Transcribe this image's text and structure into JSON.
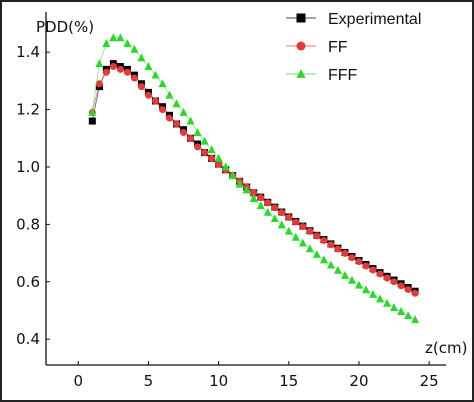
{
  "chart_data": {
    "type": "scatter",
    "title": "",
    "xlabel": "z(cm)",
    "ylabel": "PDD(%)",
    "xlim": [
      -2.3,
      26.2
    ],
    "ylim": [
      0.31,
      1.54
    ],
    "xticks": [
      0,
      5,
      10,
      15,
      20,
      25
    ],
    "yticks": [
      0.4,
      0.6,
      0.8,
      1.0,
      1.2,
      1.4
    ],
    "xtick_labels": [
      "0",
      "5",
      "10",
      "15",
      "20",
      "25"
    ],
    "ytick_labels": [
      "0.4",
      "0.6",
      "0.8",
      "1.0",
      "1.2",
      "1.4"
    ],
    "grid": false,
    "legend_position": "top-right",
    "series": [
      {
        "name": "Experimental",
        "color": "#000000",
        "marker": "square",
        "x": [
          1.0,
          1.5,
          2.0,
          2.5,
          3.0,
          3.5,
          4.0,
          4.5,
          5.0,
          5.5,
          6.0,
          6.5,
          7.0,
          7.5,
          8.0,
          8.5,
          9.0,
          9.5,
          10.0,
          10.5,
          11.0,
          11.5,
          12.0,
          12.5,
          13.0,
          13.5,
          14.0,
          14.5,
          15.0,
          15.5,
          16.0,
          16.5,
          17.0,
          17.5,
          18.0,
          18.5,
          19.0,
          19.5,
          20.0,
          20.5,
          21.0,
          21.5,
          22.0,
          22.5,
          23.0,
          23.5,
          24.0
        ],
        "y": [
          1.16,
          1.28,
          1.34,
          1.36,
          1.35,
          1.34,
          1.32,
          1.29,
          1.26,
          1.23,
          1.21,
          1.18,
          1.15,
          1.13,
          1.1,
          1.08,
          1.05,
          1.03,
          1.01,
          0.99,
          0.97,
          0.95,
          0.93,
          0.91,
          0.895,
          0.877,
          0.86,
          0.843,
          0.826,
          0.81,
          0.794,
          0.778,
          0.762,
          0.747,
          0.732,
          0.717,
          0.702,
          0.688,
          0.674,
          0.66,
          0.646,
          0.632,
          0.619,
          0.606,
          0.593,
          0.58,
          0.567
        ]
      },
      {
        "name": "FF",
        "color": "#e23b3b",
        "marker": "circle",
        "x": [
          1.0,
          1.5,
          2.0,
          2.5,
          3.0,
          3.5,
          4.0,
          4.5,
          5.0,
          5.5,
          6.0,
          6.5,
          7.0,
          7.5,
          8.0,
          8.5,
          9.0,
          9.5,
          10.0,
          10.5,
          11.0,
          11.5,
          12.0,
          12.5,
          13.0,
          13.5,
          14.0,
          14.5,
          15.0,
          15.5,
          16.0,
          16.5,
          17.0,
          17.5,
          18.0,
          18.5,
          19.0,
          19.5,
          20.0,
          20.5,
          21.0,
          21.5,
          22.0,
          22.5,
          23.0,
          23.5,
          24.0
        ],
        "y": [
          1.19,
          1.29,
          1.33,
          1.35,
          1.34,
          1.33,
          1.31,
          1.28,
          1.25,
          1.23,
          1.2,
          1.17,
          1.15,
          1.12,
          1.1,
          1.07,
          1.05,
          1.03,
          1.01,
          0.99,
          0.97,
          0.95,
          0.93,
          0.91,
          0.893,
          0.875,
          0.858,
          0.841,
          0.824,
          0.808,
          0.792,
          0.776,
          0.76,
          0.744,
          0.729,
          0.714,
          0.699,
          0.684,
          0.67,
          0.655,
          0.641,
          0.627,
          0.613,
          0.6,
          0.586,
          0.573,
          0.56
        ]
      },
      {
        "name": "FFF",
        "color": "#2ed62e",
        "marker": "triangle",
        "x": [
          1.0,
          1.5,
          2.0,
          2.5,
          3.0,
          3.5,
          4.0,
          4.5,
          5.0,
          5.5,
          6.0,
          6.5,
          7.0,
          7.5,
          8.0,
          8.5,
          9.0,
          9.5,
          10.0,
          10.5,
          11.0,
          11.5,
          12.0,
          12.5,
          13.0,
          13.5,
          14.0,
          14.5,
          15.0,
          15.5,
          16.0,
          16.5,
          17.0,
          17.5,
          18.0,
          18.5,
          19.0,
          19.5,
          20.0,
          20.5,
          21.0,
          21.5,
          22.0,
          22.5,
          23.0,
          23.5,
          24.0
        ],
        "y": [
          1.19,
          1.36,
          1.43,
          1.45,
          1.45,
          1.43,
          1.41,
          1.38,
          1.35,
          1.32,
          1.29,
          1.25,
          1.22,
          1.19,
          1.16,
          1.12,
          1.09,
          1.06,
          1.03,
          1.0,
          0.97,
          0.94,
          0.92,
          0.89,
          0.865,
          0.842,
          0.82,
          0.798,
          0.776,
          0.755,
          0.735,
          0.715,
          0.695,
          0.676,
          0.658,
          0.64,
          0.622,
          0.605,
          0.588,
          0.572,
          0.556,
          0.54,
          0.525,
          0.51,
          0.496,
          0.482,
          0.468
        ]
      }
    ]
  }
}
